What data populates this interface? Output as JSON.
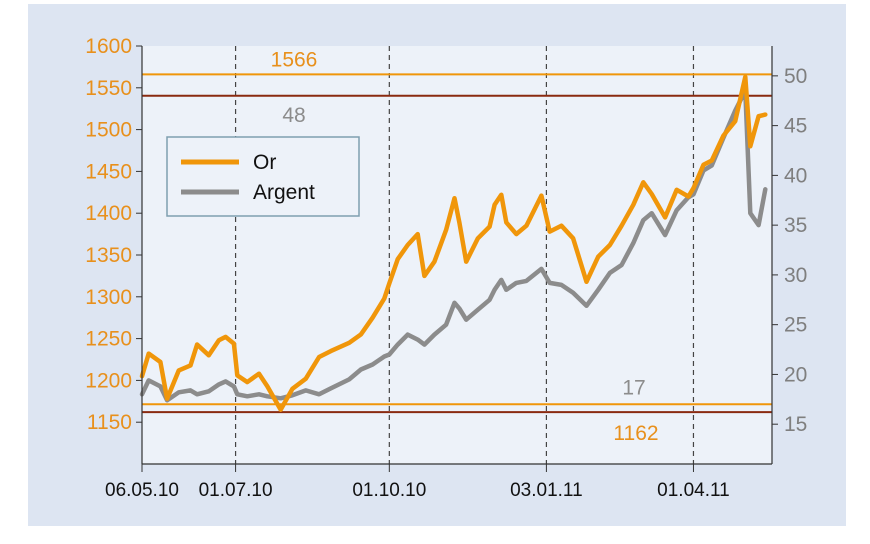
{
  "chart_data": {
    "type": "line",
    "x_ticks": [
      "06.05.10",
      "01.07.10",
      "01.10.10",
      "03.01.11",
      "01.04.11"
    ],
    "y_left": {
      "ticks": [
        1150,
        1200,
        1250,
        1300,
        1350,
        1400,
        1450,
        1500,
        1550,
        1600
      ],
      "range": [
        1100,
        1600
      ]
    },
    "y_right": {
      "ticks": [
        15,
        20,
        25,
        30,
        35,
        40,
        45,
        50
      ],
      "range": [
        11,
        53
      ]
    },
    "legend": {
      "placement": "upper-left",
      "entries": [
        "Or",
        "Argent"
      ]
    },
    "colors": {
      "or": "#f0960a",
      "argent": "#8c8c8c",
      "grid": "#444444",
      "hline_dark": "#8a2a10"
    },
    "annotations": {
      "high_or": "1566",
      "high_argent": "48",
      "low_or": "1162",
      "low_argent": "17"
    },
    "series": [
      {
        "name": "Or",
        "axis": "left",
        "values": [
          [
            "2010-05-06",
            1205
          ],
          [
            "2010-05-10",
            1232
          ],
          [
            "2010-05-17",
            1222
          ],
          [
            "2010-05-21",
            1178
          ],
          [
            "2010-05-28",
            1212
          ],
          [
            "2010-06-04",
            1218
          ],
          [
            "2010-06-08",
            1243
          ],
          [
            "2010-06-15",
            1230
          ],
          [
            "2010-06-21",
            1248
          ],
          [
            "2010-06-25",
            1252
          ],
          [
            "2010-06-30",
            1244
          ],
          [
            "2010-07-02",
            1206
          ],
          [
            "2010-07-08",
            1198
          ],
          [
            "2010-07-15",
            1208
          ],
          [
            "2010-07-20",
            1193
          ],
          [
            "2010-07-28",
            1165
          ],
          [
            "2010-08-04",
            1190
          ],
          [
            "2010-08-12",
            1202
          ],
          [
            "2010-08-20",
            1228
          ],
          [
            "2010-08-27",
            1235
          ],
          [
            "2010-09-07",
            1245
          ],
          [
            "2010-09-14",
            1255
          ],
          [
            "2010-09-21",
            1275
          ],
          [
            "2010-09-28",
            1298
          ],
          [
            "2010-10-01",
            1316
          ],
          [
            "2010-10-06",
            1345
          ],
          [
            "2010-10-12",
            1362
          ],
          [
            "2010-10-18",
            1375
          ],
          [
            "2010-10-22",
            1325
          ],
          [
            "2010-10-28",
            1342
          ],
          [
            "2010-11-04",
            1380
          ],
          [
            "2010-11-09",
            1418
          ],
          [
            "2010-11-12",
            1388
          ],
          [
            "2010-11-16",
            1342
          ],
          [
            "2010-11-23",
            1370
          ],
          [
            "2010-11-30",
            1384
          ],
          [
            "2010-12-03",
            1410
          ],
          [
            "2010-12-07",
            1422
          ],
          [
            "2010-12-10",
            1389
          ],
          [
            "2010-12-16",
            1375
          ],
          [
            "2010-12-22",
            1385
          ],
          [
            "2010-12-31",
            1421
          ],
          [
            "2011-01-05",
            1378
          ],
          [
            "2011-01-12",
            1385
          ],
          [
            "2011-01-19",
            1370
          ],
          [
            "2011-01-27",
            1318
          ],
          [
            "2011-02-03",
            1348
          ],
          [
            "2011-02-10",
            1362
          ],
          [
            "2011-02-17",
            1385
          ],
          [
            "2011-02-24",
            1410
          ],
          [
            "2011-03-02",
            1437
          ],
          [
            "2011-03-07",
            1423
          ],
          [
            "2011-03-15",
            1395
          ],
          [
            "2011-03-22",
            1428
          ],
          [
            "2011-03-29",
            1420
          ],
          [
            "2011-04-01",
            1430
          ],
          [
            "2011-04-07",
            1458
          ],
          [
            "2011-04-12",
            1463
          ],
          [
            "2011-04-19",
            1493
          ],
          [
            "2011-04-26",
            1510
          ],
          [
            "2011-05-02",
            1563
          ],
          [
            "2011-05-05",
            1480
          ],
          [
            "2011-05-10",
            1516
          ],
          [
            "2011-05-14",
            1518
          ]
        ]
      },
      {
        "name": "Argent",
        "axis": "right",
        "values": [
          [
            "2010-05-06",
            18.0
          ],
          [
            "2010-05-10",
            19.4
          ],
          [
            "2010-05-17",
            18.8
          ],
          [
            "2010-05-21",
            17.4
          ],
          [
            "2010-05-28",
            18.2
          ],
          [
            "2010-06-04",
            18.4
          ],
          [
            "2010-06-08",
            18.0
          ],
          [
            "2010-06-15",
            18.3
          ],
          [
            "2010-06-21",
            19.0
          ],
          [
            "2010-06-25",
            19.3
          ],
          [
            "2010-06-30",
            18.8
          ],
          [
            "2010-07-02",
            18.0
          ],
          [
            "2010-07-08",
            17.8
          ],
          [
            "2010-07-15",
            18.0
          ],
          [
            "2010-07-20",
            17.8
          ],
          [
            "2010-07-28",
            17.6
          ],
          [
            "2010-08-04",
            17.9
          ],
          [
            "2010-08-12",
            18.4
          ],
          [
            "2010-08-20",
            18.0
          ],
          [
            "2010-08-27",
            18.6
          ],
          [
            "2010-09-07",
            19.5
          ],
          [
            "2010-09-14",
            20.5
          ],
          [
            "2010-09-21",
            21.0
          ],
          [
            "2010-09-28",
            21.8
          ],
          [
            "2010-10-01",
            22.0
          ],
          [
            "2010-10-06",
            23.0
          ],
          [
            "2010-10-12",
            24.0
          ],
          [
            "2010-10-18",
            23.5
          ],
          [
            "2010-10-22",
            23.0
          ],
          [
            "2010-10-28",
            24.0
          ],
          [
            "2010-11-04",
            25.0
          ],
          [
            "2010-11-09",
            27.2
          ],
          [
            "2010-11-12",
            26.6
          ],
          [
            "2010-11-16",
            25.5
          ],
          [
            "2010-11-23",
            26.5
          ],
          [
            "2010-11-30",
            27.5
          ],
          [
            "2010-12-03",
            28.5
          ],
          [
            "2010-12-07",
            29.5
          ],
          [
            "2010-12-10",
            28.5
          ],
          [
            "2010-12-16",
            29.2
          ],
          [
            "2010-12-22",
            29.4
          ],
          [
            "2010-12-31",
            30.6
          ],
          [
            "2011-01-05",
            29.2
          ],
          [
            "2011-01-12",
            29.0
          ],
          [
            "2011-01-19",
            28.2
          ],
          [
            "2011-01-27",
            26.9
          ],
          [
            "2011-02-03",
            28.5
          ],
          [
            "2011-02-10",
            30.2
          ],
          [
            "2011-02-17",
            31.0
          ],
          [
            "2011-02-24",
            33.2
          ],
          [
            "2011-03-02",
            35.5
          ],
          [
            "2011-03-07",
            36.2
          ],
          [
            "2011-03-15",
            34.0
          ],
          [
            "2011-03-22",
            36.5
          ],
          [
            "2011-03-29",
            37.8
          ],
          [
            "2011-04-01",
            38.1
          ],
          [
            "2011-04-07",
            40.5
          ],
          [
            "2011-04-12",
            41.0
          ],
          [
            "2011-04-19",
            43.8
          ],
          [
            "2011-04-26",
            46.5
          ],
          [
            "2011-05-02",
            48.5
          ],
          [
            "2011-05-05",
            36.2
          ],
          [
            "2011-05-10",
            35.0
          ],
          [
            "2011-05-14",
            38.6
          ]
        ]
      }
    ]
  }
}
